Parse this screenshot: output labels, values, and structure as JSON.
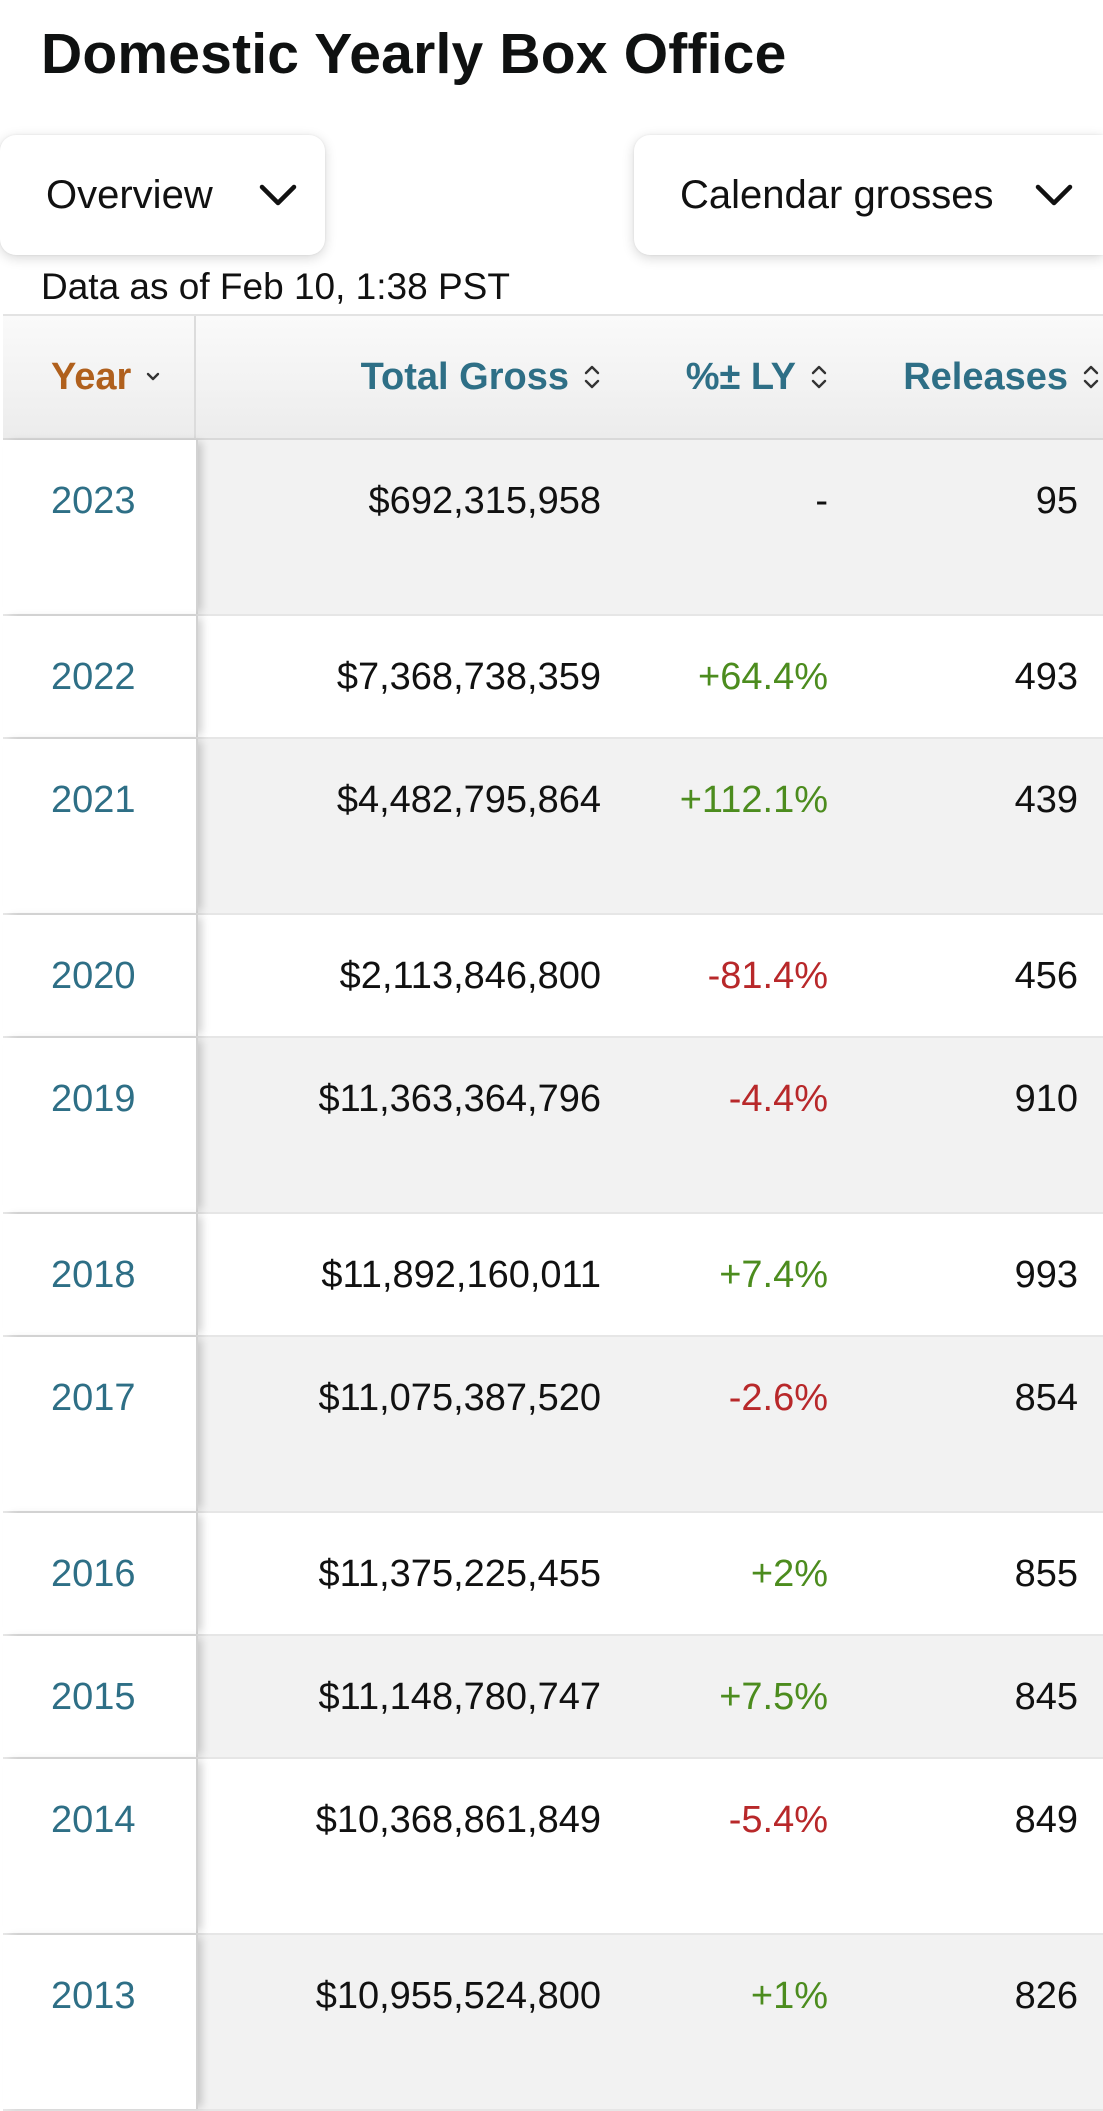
{
  "page": {
    "title": "Domestic Yearly Box Office",
    "as_of": "Data as of Feb 10, 1:38 PST"
  },
  "filters": {
    "view": {
      "label": "Overview",
      "icon": "chevron-down-icon"
    },
    "grosses": {
      "label": "Calendar grosses",
      "icon": "chevron-down-icon"
    }
  },
  "table": {
    "columns": {
      "year": "Year",
      "total_gross": "Total Gross",
      "pct_ly": "%± LY",
      "releases": "Releases"
    },
    "rows": [
      {
        "year": "2023",
        "total_gross": "$692,315,958",
        "pct_ly": "-",
        "releases": "95"
      },
      {
        "year": "2022",
        "total_gross": "$7,368,738,359",
        "pct_ly": "+64.4%",
        "releases": "493"
      },
      {
        "year": "2021",
        "total_gross": "$4,482,795,864",
        "pct_ly": "+112.1%",
        "releases": "439"
      },
      {
        "year": "2020",
        "total_gross": "$2,113,846,800",
        "pct_ly": "-81.4%",
        "releases": "456"
      },
      {
        "year": "2019",
        "total_gross": "$11,363,364,796",
        "pct_ly": "-4.4%",
        "releases": "910"
      },
      {
        "year": "2018",
        "total_gross": "$11,892,160,011",
        "pct_ly": "+7.4%",
        "releases": "993"
      },
      {
        "year": "2017",
        "total_gross": "$11,075,387,520",
        "pct_ly": "-2.6%",
        "releases": "854"
      },
      {
        "year": "2016",
        "total_gross": "$11,375,225,455",
        "pct_ly": "+2%",
        "releases": "855"
      },
      {
        "year": "2015",
        "total_gross": "$11,148,780,747",
        "pct_ly": "+7.5%",
        "releases": "845"
      },
      {
        "year": "2014",
        "total_gross": "$10,368,861,849",
        "pct_ly": "-5.4%",
        "releases": "849"
      },
      {
        "year": "2013",
        "total_gross": "$10,955,524,800",
        "pct_ly": "+1%",
        "releases": "826"
      }
    ]
  },
  "colors": {
    "link": "#2e6f86",
    "sorted_header": "#b0601d",
    "positive": "#4c8c1e",
    "negative": "#b8282a"
  }
}
